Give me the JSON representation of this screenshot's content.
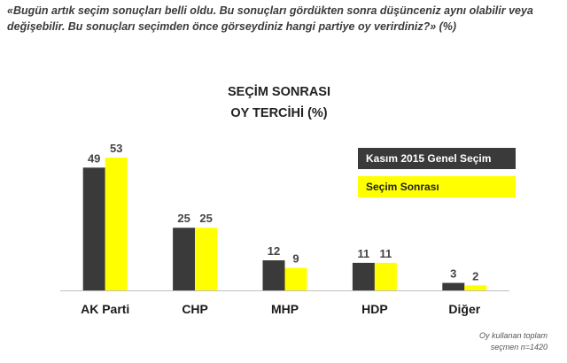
{
  "question": "«Bugün artık seçim sonuçları belli oldu. Bu sonuçları gördükten sonra düşünceniz aynı olabilir veya değişebilir. Bu sonuçları seçimden önce görseydiniz hangi partiye oy verirdiniz?» (%)",
  "chart_data": {
    "type": "bar",
    "title": "SEÇİM SONRASI",
    "subtitle": "OY TERCİHİ (%)",
    "categories": [
      "AK Parti",
      "CHP",
      "MHP",
      "HDP",
      "Diğer"
    ],
    "series": [
      {
        "name": "Kasım 2015 Genel Seçim",
        "color": "#3a3a3a",
        "values": [
          49,
          25,
          12,
          11,
          3
        ]
      },
      {
        "name": "Seçim Sonrası",
        "color": "#ffff00",
        "values": [
          53,
          25,
          9,
          11,
          2
        ]
      }
    ],
    "ylim": [
      0,
      53
    ],
    "grid": false,
    "legend_position": "right",
    "data_labels": true
  },
  "footnote": {
    "line1": "Oy kullanan toplam",
    "line2": "seçmen n=1420"
  }
}
